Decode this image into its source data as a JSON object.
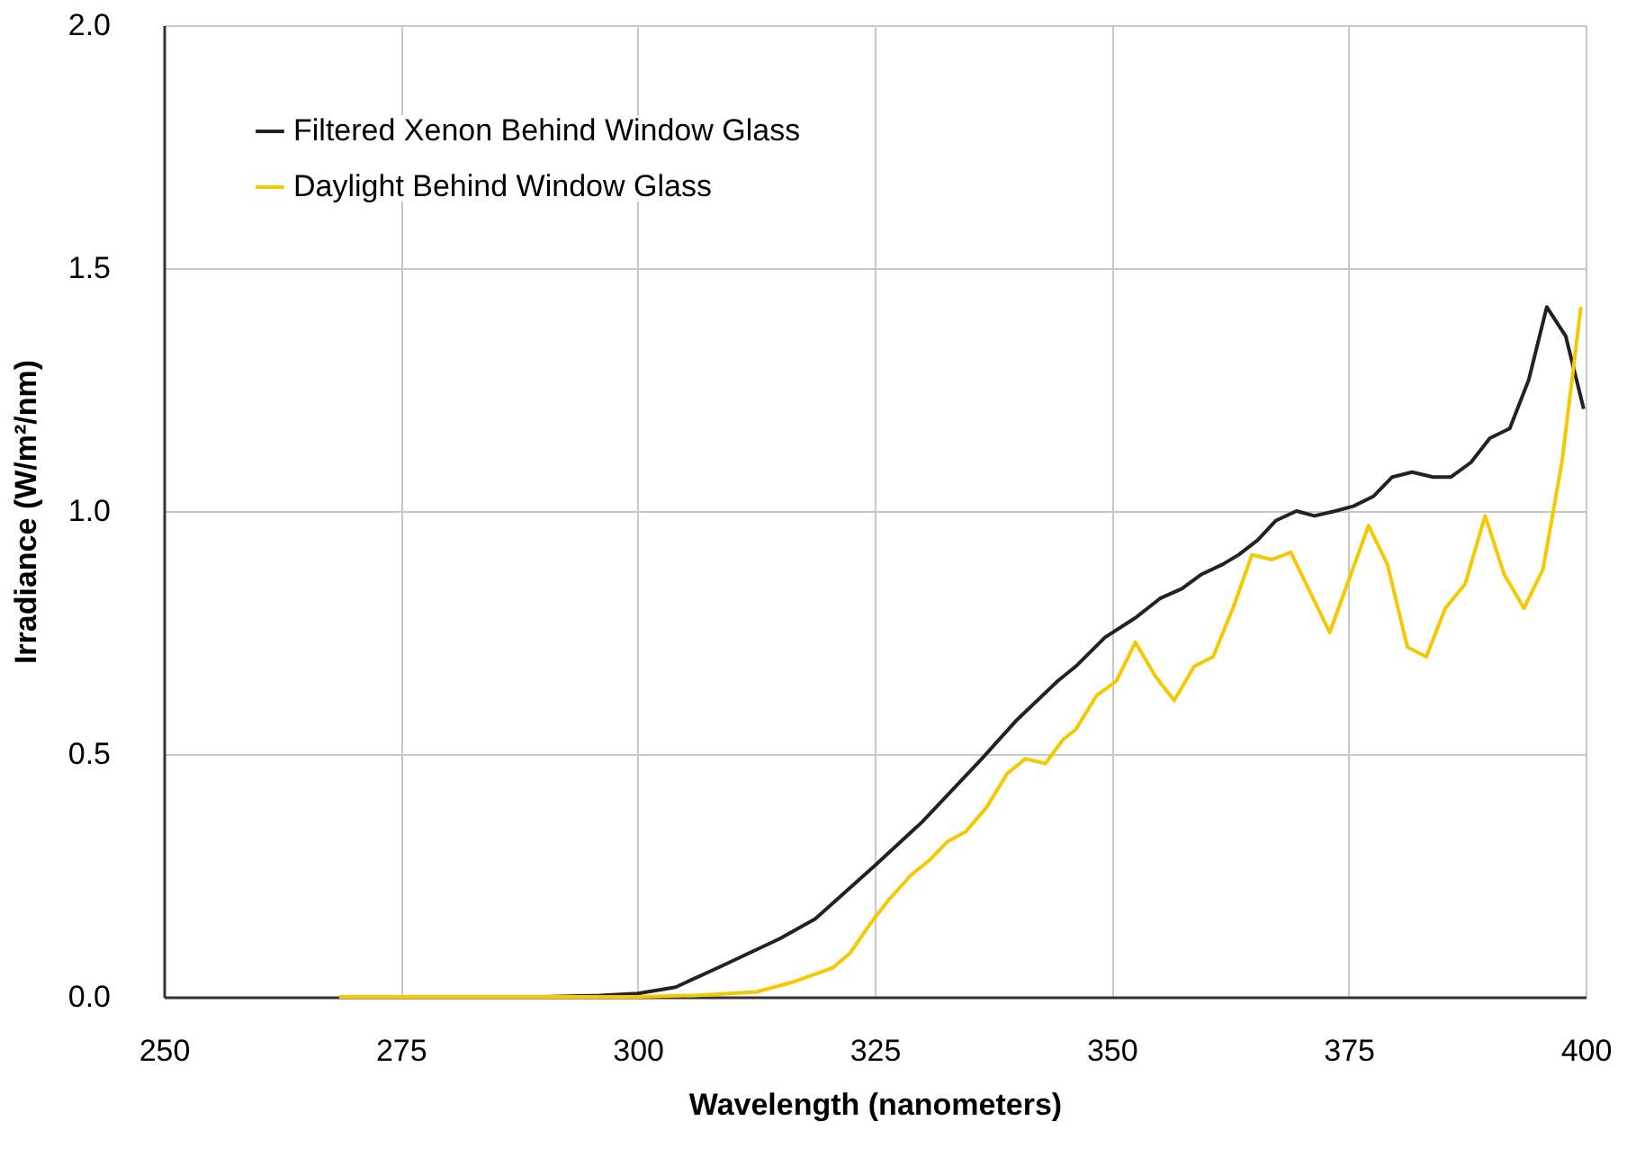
{
  "chart_data": {
    "type": "line",
    "xlabel": "Wavelength (nanometers)",
    "ylabel": "Irradiance (W/m²/nm)",
    "xlim": [
      250,
      400
    ],
    "xticks": [
      250,
      275,
      300,
      325,
      350,
      375,
      400
    ],
    "ylim": [
      0,
      2
    ],
    "yticks": [
      {
        "value": 0,
        "label": "0.0"
      },
      {
        "value": 0.5,
        "label": "0.5"
      },
      {
        "value": 1,
        "label": "1.0"
      },
      {
        "value": 1.5,
        "label": "1.5"
      },
      {
        "value": 2,
        "label": "2.0"
      }
    ],
    "grid": true,
    "legend": "top left",
    "marker": "none",
    "line_style": "solid",
    "series": [
      {
        "name": "Filtered Xenon Behind Window Glass",
        "color": "#222222",
        "x": [
          268.5,
          280,
          290,
          296,
          300,
          304,
          308.8,
          315,
          318.7,
          325,
          330,
          336.3,
          340,
          344.3,
          346.2,
          349.3,
          352.5,
          355.1,
          357.4,
          359.5,
          361.7,
          363.4,
          365.4,
          367.3,
          369.5,
          371.4,
          373.6,
          375.5,
          377.6,
          379.6,
          381.7,
          383.9,
          385.8,
          387.9,
          389.9,
          392,
          394,
          395.9,
          397.9,
          399.8
        ],
        "values": [
          0,
          0,
          0,
          0.003,
          0.007,
          0.02,
          0.063,
          0.12,
          0.16,
          0.27,
          0.36,
          0.49,
          0.57,
          0.65,
          0.68,
          0.74,
          0.78,
          0.82,
          0.84,
          0.87,
          0.89,
          0.91,
          0.94,
          0.98,
          1.0,
          0.99,
          1.0,
          1.01,
          1.03,
          1.07,
          1.08,
          1.07,
          1.07,
          1.1,
          1.15,
          1.17,
          1.27,
          1.42,
          1.36,
          1.21
        ]
      },
      {
        "name": "Daylight Behind Window Glass",
        "color": "#f5c800",
        "x": [
          268.5,
          280,
          290,
          300,
          306,
          312.5,
          316.3,
          320.6,
          322.4,
          324.7,
          326.5,
          328.8,
          330.7,
          332.7,
          334.6,
          336.8,
          339,
          340.9,
          343,
          344.9,
          346.2,
          348.4,
          350.5,
          352.5,
          354.6,
          356.6,
          358.7,
          360.7,
          362.8,
          364.8,
          366.9,
          368.9,
          373,
          377.1,
          379.1,
          381.2,
          383.2,
          385.2,
          387.3,
          389.4,
          391.4,
          393.5,
          395.5,
          397.5,
          399.5
        ],
        "values": [
          0,
          0,
          0,
          0,
          0.003,
          0.01,
          0.03,
          0.06,
          0.09,
          0.155,
          0.2,
          0.25,
          0.28,
          0.32,
          0.34,
          0.39,
          0.46,
          0.49,
          0.48,
          0.53,
          0.55,
          0.62,
          0.65,
          0.73,
          0.66,
          0.61,
          0.68,
          0.7,
          0.8,
          0.91,
          0.9,
          0.915,
          0.75,
          0.97,
          0.89,
          0.72,
          0.7,
          0.8,
          0.85,
          0.99,
          0.87,
          0.8,
          0.88,
          1.1,
          1.42
        ]
      }
    ]
  }
}
